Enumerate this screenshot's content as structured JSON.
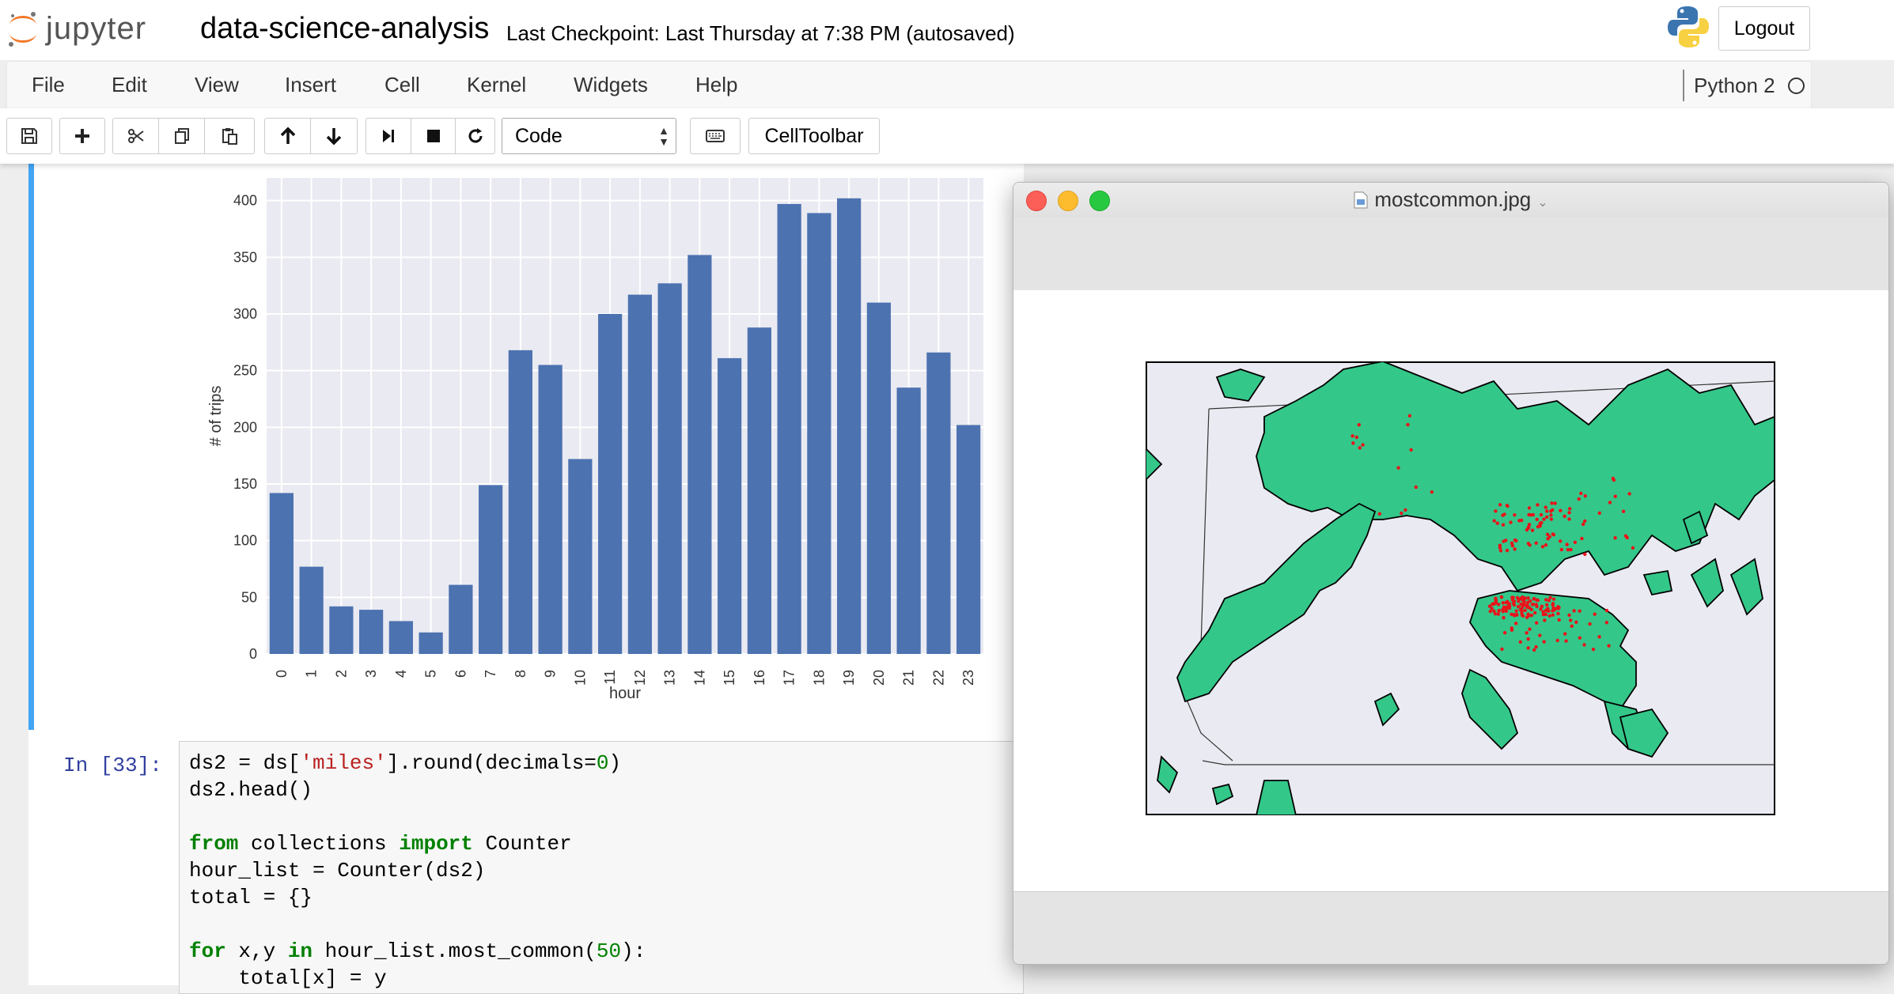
{
  "header": {
    "logo_text": "jupyter",
    "notebook_name": "data-science-analysis",
    "checkpoint": "Last Checkpoint: Last Thursday at 7:38 PM (autosaved)",
    "logout_label": "Logout"
  },
  "menu": {
    "items": [
      "File",
      "Edit",
      "View",
      "Insert",
      "Cell",
      "Kernel",
      "Widgets",
      "Help"
    ],
    "kernel_name": "Python 2"
  },
  "toolbar": {
    "cell_type": "Code",
    "celltoolbar_label": "CellToolbar",
    "icons": [
      "save-icon",
      "plus-icon",
      "cut-icon",
      "copy-icon",
      "paste-icon",
      "arrow-up-icon",
      "arrow-down-icon",
      "run-icon",
      "stop-icon",
      "restart-icon",
      "keyboard-icon"
    ]
  },
  "chart_data": {
    "type": "bar",
    "xlabel": "hour",
    "ylabel": "# of trips",
    "categories": [
      "0",
      "1",
      "2",
      "3",
      "4",
      "5",
      "6",
      "7",
      "8",
      "9",
      "10",
      "11",
      "12",
      "13",
      "14",
      "15",
      "16",
      "17",
      "18",
      "19",
      "20",
      "21",
      "22",
      "23"
    ],
    "values": [
      142,
      77,
      42,
      39,
      29,
      19,
      61,
      149,
      268,
      255,
      172,
      300,
      317,
      327,
      352,
      261,
      288,
      397,
      389,
      402,
      310,
      235,
      266,
      202
    ],
    "yticks": [
      0,
      50,
      100,
      150,
      200,
      250,
      300,
      350,
      400
    ],
    "ylim": [
      0,
      420
    ],
    "color": "#4c72b0",
    "background": "#eaeaf2",
    "grid": true
  },
  "code_cell": {
    "prompt": "In [33]:",
    "lines": [
      [
        {
          "t": "ds2 = ds["
        },
        {
          "t": "'miles'",
          "c": "str"
        },
        {
          "t": "].round(decimals="
        },
        {
          "t": "0",
          "c": "num"
        },
        {
          "t": ")"
        }
      ],
      [
        {
          "t": "ds2.head()"
        }
      ],
      [],
      [
        {
          "t": "from",
          "c": "kw"
        },
        {
          "t": " collections "
        },
        {
          "t": "import",
          "c": "kw"
        },
        {
          "t": " Counter"
        }
      ],
      [
        {
          "t": "hour_list = Counter(ds2)"
        }
      ],
      [
        {
          "t": "total = {}"
        }
      ],
      [],
      [
        {
          "t": "for",
          "c": "kw"
        },
        {
          "t": " x,y "
        },
        {
          "t": "in",
          "c": "kw"
        },
        {
          "t": " hour_list.most_common("
        },
        {
          "t": "50",
          "c": "num"
        },
        {
          "t": "):"
        }
      ],
      [
        {
          "t": "    total[x] = y"
        }
      ]
    ]
  },
  "preview": {
    "filename": "mostcommon.jpg",
    "land_color": "#34c78a",
    "point_color": "#e8141a"
  }
}
